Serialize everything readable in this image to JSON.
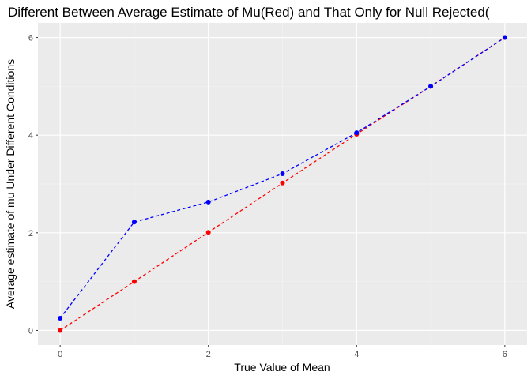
{
  "chart_data": {
    "type": "line",
    "title": "Different Between Average Estimate of Mu(Red) and That Only for Null Rejected(",
    "xlabel": "True Value of Mean",
    "ylabel": "Average estimate of mu Under Different Conditions",
    "x": [
      0,
      1,
      2,
      3,
      4,
      5,
      6
    ],
    "xlim": [
      -0.3,
      6.3
    ],
    "ylim": [
      -0.3,
      6.3
    ],
    "xticks": [
      0,
      2,
      4,
      6
    ],
    "yticks": [
      0,
      2,
      4,
      6
    ],
    "grid": true,
    "series": [
      {
        "color": "#ff0000",
        "dash": "dashed",
        "values": [
          0.0,
          1.0,
          2.01,
          3.02,
          4.02,
          5.0,
          6.0
        ]
      },
      {
        "color": "#0000ff",
        "dash": "dashed",
        "values": [
          0.25,
          2.22,
          2.63,
          3.21,
          4.05,
          5.0,
          6.0
        ]
      }
    ]
  }
}
